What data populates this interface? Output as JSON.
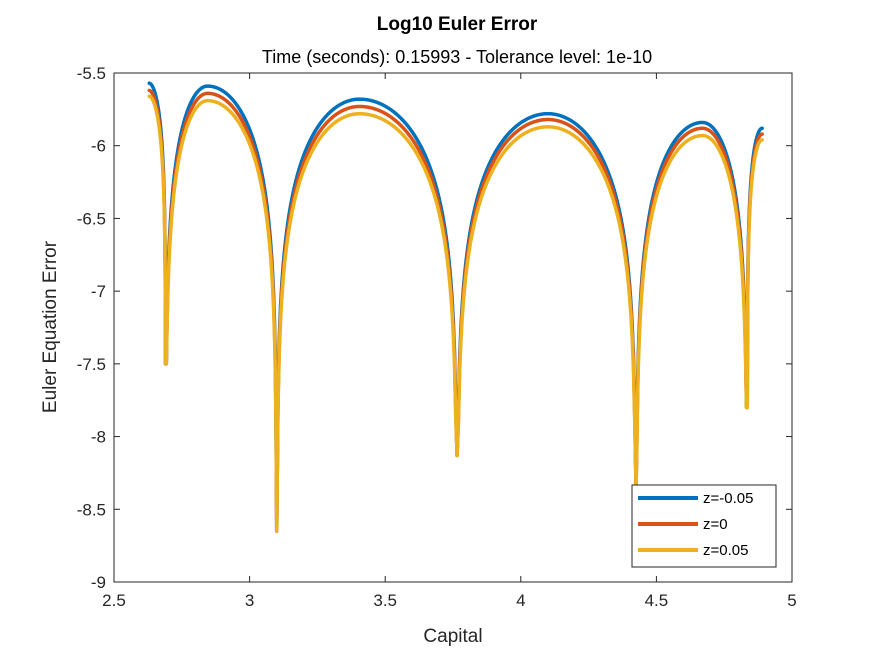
{
  "chart_data": {
    "type": "line",
    "title": "Log10 Euler Error",
    "subtitle": "Time (seconds): 0.15993 - Tolerance level: 1e-10",
    "xlabel": "Capital",
    "ylabel": "Euler Equation Error",
    "xlim": [
      2.5,
      5
    ],
    "ylim": [
      -9,
      -5.5
    ],
    "xticks": [
      "2.5",
      "3",
      "3.5",
      "4",
      "4.5",
      "5"
    ],
    "yticks": [
      "-5.5",
      "-6",
      "-6.5",
      "-7",
      "-7.5",
      "-8",
      "-8.5",
      "-9"
    ],
    "grid": false,
    "legend_position": "bottom-right",
    "x_range": [
      2.63,
      4.89
    ],
    "dips": [
      {
        "x": 2.69,
        "y": -7.5
      },
      {
        "x": 3.1,
        "y": -8.65
      },
      {
        "x": 3.765,
        "y": -8.13
      },
      {
        "x": 4.425,
        "y": -8.35
      },
      {
        "x": 4.835,
        "y": -7.8
      }
    ],
    "series": [
      {
        "name": "z=-0.05",
        "color": "#0072BD",
        "peaks": [
          {
            "x": 2.63,
            "y": -5.57
          },
          {
            "x": 2.845,
            "y": -5.59
          },
          {
            "x": 3.405,
            "y": -5.68
          },
          {
            "x": 4.1,
            "y": -5.78
          },
          {
            "x": 4.67,
            "y": -5.84
          },
          {
            "x": 4.89,
            "y": -5.88
          }
        ]
      },
      {
        "name": "z=0",
        "color": "#D95319",
        "peaks": [
          {
            "x": 2.63,
            "y": -5.62
          },
          {
            "x": 2.845,
            "y": -5.64
          },
          {
            "x": 3.405,
            "y": -5.73
          },
          {
            "x": 4.1,
            "y": -5.82
          },
          {
            "x": 4.67,
            "y": -5.88
          },
          {
            "x": 4.89,
            "y": -5.92
          }
        ]
      },
      {
        "name": "z=0.05",
        "color": "#EDB120",
        "peaks": [
          {
            "x": 2.63,
            "y": -5.66
          },
          {
            "x": 2.845,
            "y": -5.69
          },
          {
            "x": 3.405,
            "y": -5.78
          },
          {
            "x": 4.1,
            "y": -5.87
          },
          {
            "x": 4.67,
            "y": -5.93
          },
          {
            "x": 4.89,
            "y": -5.96
          }
        ]
      }
    ]
  }
}
